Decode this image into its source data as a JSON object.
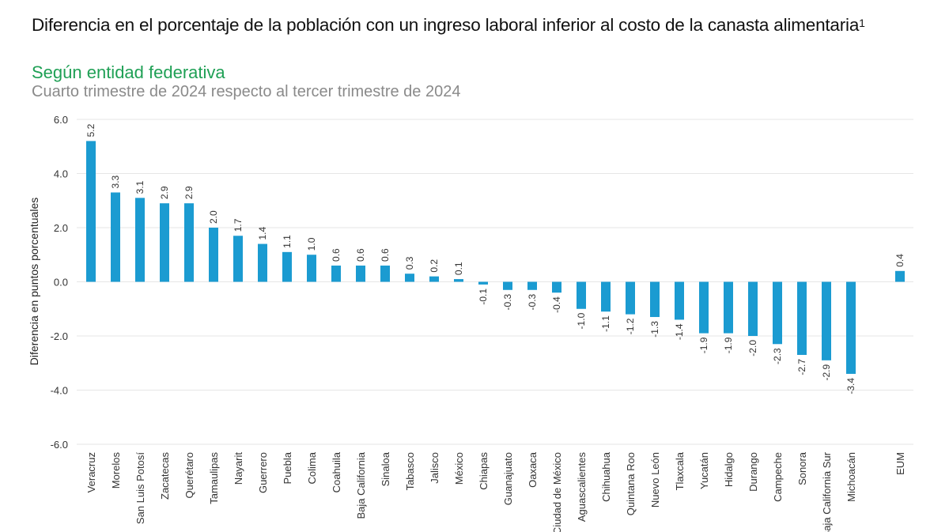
{
  "chart_data": {
    "type": "bar",
    "title": "Diferencia en el porcentaje de la población con un ingreso laboral inferior al costo de la canasta alimentaria",
    "title_superscript": "1",
    "subtitle": "Según entidad federativa",
    "subtitle2": "Cuarto trimestre de 2024 respecto al tercer trimestre de 2024",
    "xlabel": "",
    "ylabel": "Diferencia en puntos porcentuales",
    "ylim": [
      -6,
      6
    ],
    "yticks": [
      "6.0",
      "4.0",
      "2.0",
      "0.0",
      "-2.0",
      "-4.0",
      "-6.0"
    ],
    "ytick_values": [
      6,
      4,
      2,
      0,
      -2,
      -4,
      -6
    ],
    "grid": true,
    "bar_color": "#1b9bd1",
    "categories": [
      "Veracruz",
      "Morelos",
      "San Luis Potosí",
      "Zacatecas",
      "Querétaro",
      "Tamaulipas",
      "Nayarit",
      "Guerrero",
      "Puebla",
      "Colima",
      "Coahuila",
      "Baja California",
      "Sinaloa",
      "Tabasco",
      "Jalisco",
      "México",
      "Chiapas",
      "Guanajuato",
      "Oaxaca",
      "Ciudad de México",
      "Aguascalientes",
      "Chihuahua",
      "Quintana Roo",
      "Nuevo León",
      "Tlaxcala",
      "Yucatán",
      "Hidalgo",
      "Durango",
      "Campeche",
      "Sonora",
      "Baja California Sur",
      "Michoacán",
      "EUM"
    ],
    "values": [
      5.2,
      3.3,
      3.1,
      2.9,
      2.9,
      2.0,
      1.7,
      1.4,
      1.1,
      1.0,
      0.6,
      0.6,
      0.6,
      0.3,
      0.2,
      0.1,
      -0.1,
      -0.3,
      -0.3,
      -0.4,
      -1.0,
      -1.1,
      -1.2,
      -1.3,
      -1.4,
      -1.9,
      -1.9,
      -2.0,
      -2.3,
      -2.7,
      -2.9,
      -3.4,
      0.4
    ],
    "data_labels": [
      "5.2",
      "3.3",
      "3.1",
      "2.9",
      "2.9",
      "2.0",
      "1.7",
      "1.4",
      "1.1",
      "1.0",
      "0.6",
      "0.6",
      "0.6",
      "0.3",
      "0.2",
      "0.1",
      "-0.1",
      "-0.3",
      "-0.3",
      "-0.4",
      "-1.0",
      "-1.1",
      "-1.2",
      "-1.3",
      "-1.4",
      "-1.9",
      "-1.9",
      "-2.0",
      "-2.3",
      "-2.7",
      "-2.9",
      "-3.4",
      "0.4"
    ]
  }
}
